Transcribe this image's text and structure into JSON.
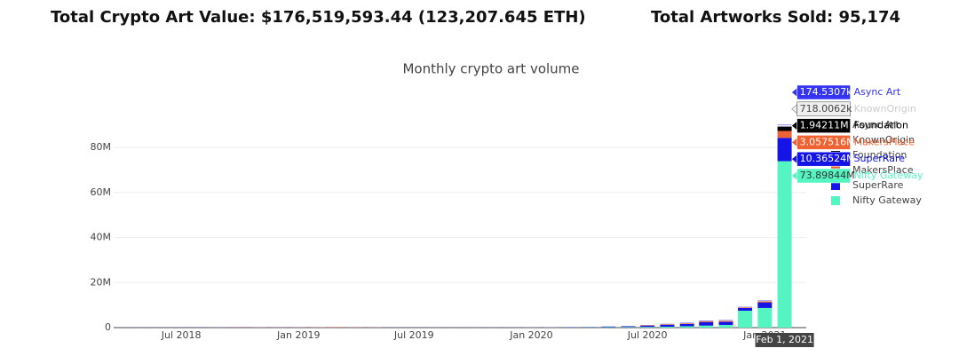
{
  "header": {
    "total_value": "Total Crypto Art Value: $176,519,593.44 (123,207.645 ETH)",
    "total_sold": "Total Artworks Sold: 95,174"
  },
  "chart_data": {
    "type": "bar",
    "stacked": true,
    "title": "Monthly crypto art volume",
    "x": [
      "2018-04",
      "2018-05",
      "2018-06",
      "2018-07",
      "2018-08",
      "2018-09",
      "2018-10",
      "2018-11",
      "2018-12",
      "2019-01",
      "2019-02",
      "2019-03",
      "2019-04",
      "2019-05",
      "2019-06",
      "2019-07",
      "2019-08",
      "2019-09",
      "2019-10",
      "2019-11",
      "2019-12",
      "2020-01",
      "2020-02",
      "2020-03",
      "2020-04",
      "2020-05",
      "2020-06",
      "2020-07",
      "2020-08",
      "2020-09",
      "2020-10",
      "2020-11",
      "2020-12",
      "2021-01",
      "2021-02"
    ],
    "xlim": [
      "2018-03-17",
      "2021-03-07"
    ],
    "xticks": [
      {
        "value": "2018-07",
        "label": "Jul 2018"
      },
      {
        "value": "2019-01",
        "label": "Jan 2019"
      },
      {
        "value": "2019-07",
        "label": "Jul 2019"
      },
      {
        "value": "2020-01",
        "label": "Jan 2020"
      },
      {
        "value": "2020-07",
        "label": "Jul 2020"
      },
      {
        "value": "2021-01",
        "label": "Jan 2021"
      }
    ],
    "ylim": [
      0,
      95000000
    ],
    "yticks": [
      0,
      {
        "value": 20000000,
        "label": "20M"
      },
      {
        "value": 40000000,
        "label": "40M"
      },
      {
        "value": 60000000,
        "label": "60M"
      },
      {
        "value": 80000000,
        "label": "80M"
      }
    ],
    "grid": true,
    "hover_x_label": "Feb 1, 2021",
    "series": [
      {
        "name": "Nifty Gateway",
        "color": "#55f5c1",
        "values": [
          0,
          0,
          0,
          0,
          0,
          0,
          0,
          0,
          0,
          0,
          0,
          0,
          0,
          0,
          0,
          0,
          0,
          0,
          0,
          0,
          20000,
          30000,
          50000,
          80000,
          150000,
          200000,
          250000,
          300000,
          400000,
          600000,
          900000,
          1200000,
          7500000,
          8700000,
          73898440
        ],
        "value_labels": [
          null,
          null,
          null,
          null,
          null,
          null,
          null,
          null,
          null,
          null,
          null,
          null,
          null,
          null,
          null,
          null,
          null,
          null,
          null,
          null,
          null,
          null,
          null,
          null,
          null,
          null,
          null,
          null,
          null,
          null,
          null,
          null,
          null,
          null,
          "73.89844M"
        ]
      },
      {
        "name": "SuperRare",
        "color": "#1414e6",
        "values": [
          30000,
          40000,
          50000,
          60000,
          80000,
          100000,
          120000,
          100000,
          90000,
          100000,
          90000,
          80000,
          100000,
          90000,
          80000,
          60000,
          50000,
          40000,
          40000,
          50000,
          60000,
          70000,
          80000,
          90000,
          100000,
          200000,
          300000,
          500000,
          800000,
          1000000,
          1500000,
          1400000,
          1200000,
          2500000,
          10365240
        ],
        "value_labels": [
          null,
          null,
          null,
          null,
          null,
          null,
          null,
          null,
          null,
          null,
          null,
          null,
          null,
          null,
          null,
          null,
          null,
          null,
          null,
          null,
          null,
          null,
          null,
          null,
          null,
          null,
          null,
          null,
          null,
          null,
          null,
          null,
          null,
          null,
          "10.36524M"
        ]
      },
      {
        "name": "MakersPlace",
        "color": "#ef6232",
        "values": [
          0,
          0,
          0,
          0,
          10000,
          50000,
          100000,
          80000,
          60000,
          80000,
          100000,
          150000,
          100000,
          80000,
          30000,
          20000,
          20000,
          20000,
          20000,
          20000,
          20000,
          20000,
          30000,
          20000,
          30000,
          80000,
          100000,
          200000,
          200000,
          300000,
          400000,
          400000,
          300000,
          500000,
          3057516
        ],
        "value_labels": [
          null,
          null,
          null,
          null,
          null,
          null,
          null,
          null,
          null,
          null,
          null,
          null,
          null,
          null,
          null,
          null,
          null,
          null,
          null,
          null,
          null,
          null,
          null,
          null,
          null,
          null,
          null,
          null,
          null,
          null,
          null,
          null,
          null,
          null,
          "3.057516M"
        ]
      },
      {
        "name": "Foundation",
        "color": "#000000",
        "values": [
          0,
          0,
          0,
          0,
          0,
          0,
          0,
          0,
          0,
          0,
          0,
          0,
          0,
          0,
          0,
          0,
          0,
          0,
          0,
          0,
          0,
          0,
          0,
          0,
          0,
          0,
          0,
          0,
          0,
          0,
          0,
          0,
          0,
          0,
          1942110
        ],
        "value_labels": [
          null,
          null,
          null,
          null,
          null,
          null,
          null,
          null,
          null,
          null,
          null,
          null,
          null,
          null,
          null,
          null,
          null,
          null,
          null,
          null,
          null,
          null,
          null,
          null,
          null,
          null,
          null,
          null,
          null,
          null,
          null,
          null,
          null,
          null,
          "1.94211M"
        ]
      },
      {
        "name": "KnownOrigin",
        "color": "#eeeeee",
        "values": [
          10000,
          10000,
          10000,
          10000,
          10000,
          10000,
          10000,
          10000,
          10000,
          10000,
          10000,
          10000,
          10000,
          10000,
          10000,
          10000,
          10000,
          10000,
          10000,
          10000,
          10000,
          20000,
          20000,
          30000,
          40000,
          50000,
          60000,
          80000,
          100000,
          120000,
          150000,
          200000,
          200000,
          300000,
          718006.2
        ],
        "value_labels": [
          null,
          null,
          null,
          null,
          null,
          null,
          null,
          null,
          null,
          null,
          null,
          null,
          null,
          null,
          null,
          null,
          null,
          null,
          null,
          null,
          null,
          null,
          null,
          null,
          null,
          null,
          null,
          null,
          null,
          null,
          null,
          null,
          null,
          null,
          "718.0062k"
        ]
      },
      {
        "name": "Async Art",
        "color": "#3434f2",
        "values": [
          0,
          0,
          0,
          0,
          0,
          0,
          0,
          0,
          0,
          0,
          0,
          0,
          0,
          0,
          0,
          0,
          0,
          0,
          0,
          0,
          0,
          0,
          10000,
          30000,
          50000,
          60000,
          80000,
          100000,
          150000,
          150000,
          200000,
          150000,
          100000,
          150000,
          174530.7
        ],
        "value_labels": [
          null,
          null,
          null,
          null,
          null,
          null,
          null,
          null,
          null,
          null,
          null,
          null,
          null,
          null,
          null,
          null,
          null,
          null,
          null,
          null,
          null,
          null,
          null,
          null,
          null,
          null,
          null,
          null,
          null,
          null,
          null,
          null,
          null,
          null,
          "174.5307k"
        ]
      }
    ]
  }
}
